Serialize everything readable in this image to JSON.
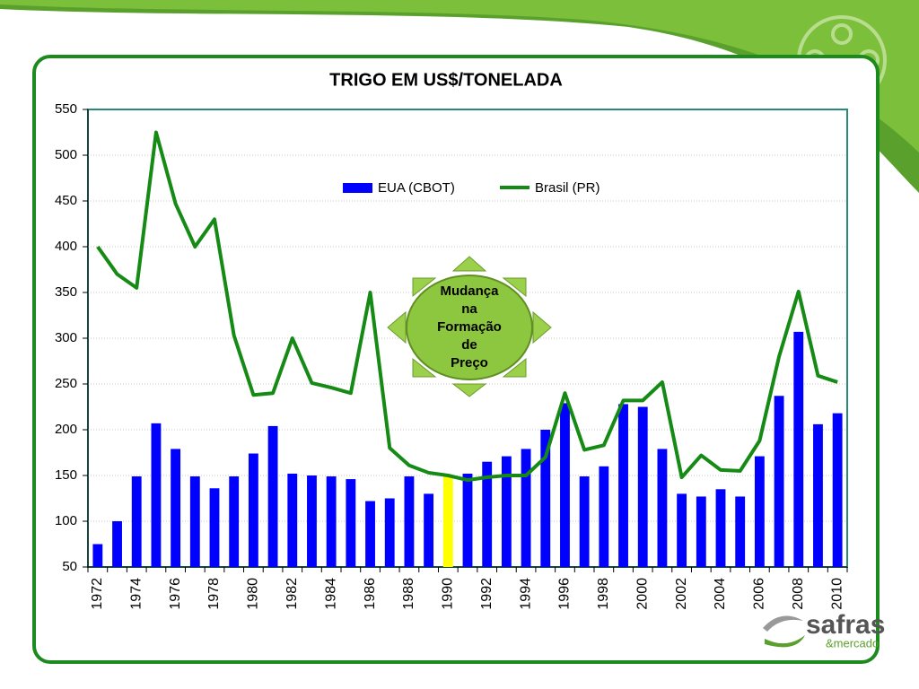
{
  "chart_data": {
    "type": "bar_line",
    "title": "TRIGO EM US$/TONELADA",
    "categories": [
      "1972",
      null,
      "1974",
      null,
      "1976",
      null,
      "1978",
      null,
      "1980",
      null,
      "1982",
      null,
      "1984",
      null,
      "1986",
      null,
      "1988",
      null,
      "1990",
      null,
      "1992",
      null,
      "1994",
      null,
      "1996",
      null,
      "1998",
      null,
      "2000",
      null,
      "2002",
      null,
      "2004",
      null,
      "2006",
      null,
      "2008",
      null,
      "2010"
    ],
    "series": [
      {
        "name": "EUA (CBOT)",
        "type": "bar",
        "color": "#0000ff",
        "colors": [
          "#0000ff",
          "#0000ff",
          "#0000ff",
          "#0000ff",
          "#0000ff",
          "#0000ff",
          "#0000ff",
          "#0000ff",
          "#0000ff",
          "#0000ff",
          "#0000ff",
          "#0000ff",
          "#0000ff",
          "#0000ff",
          "#0000ff",
          "#0000ff",
          "#0000ff",
          "#0000ff",
          "#ffff00",
          "#0000ff",
          "#0000ff",
          "#0000ff",
          "#0000ff",
          "#0000ff",
          "#0000ff",
          "#0000ff",
          "#0000ff",
          "#0000ff",
          "#0000ff",
          "#0000ff",
          "#0000ff",
          "#0000ff",
          "#0000ff",
          "#0000ff",
          "#0000ff",
          "#0000ff",
          "#0000ff",
          "#0000ff",
          "#0000ff"
        ],
        "values": [
          75,
          100,
          149,
          207,
          179,
          149,
          136,
          149,
          174,
          204,
          152,
          150,
          149,
          146,
          122,
          125,
          149,
          130,
          150,
          152,
          165,
          171,
          179,
          200,
          229,
          149,
          160,
          228,
          225,
          179,
          130,
          127,
          135,
          127,
          171,
          237,
          307,
          206,
          218
        ]
      },
      {
        "name": "Brasil (PR)",
        "type": "line",
        "color": "#158a15",
        "values": [
          400,
          370,
          355,
          525,
          447,
          400,
          430,
          303,
          238,
          240,
          300,
          251,
          246,
          240,
          350,
          180,
          161,
          153,
          150,
          145,
          148,
          150,
          150,
          170,
          240,
          178,
          183,
          232,
          232,
          252,
          148,
          172,
          156,
          155,
          188,
          280,
          351,
          259,
          252
        ]
      }
    ],
    "ylim": [
      50,
      550
    ],
    "yticks": [
      50,
      100,
      150,
      200,
      250,
      300,
      350,
      400,
      450,
      500,
      550
    ],
    "grid": true,
    "legend": "top",
    "annotation": [
      "Mudança",
      "na",
      "Formação",
      "de",
      "Preço"
    ]
  },
  "logo": {
    "name": "safras",
    "sub": "&mercado"
  }
}
